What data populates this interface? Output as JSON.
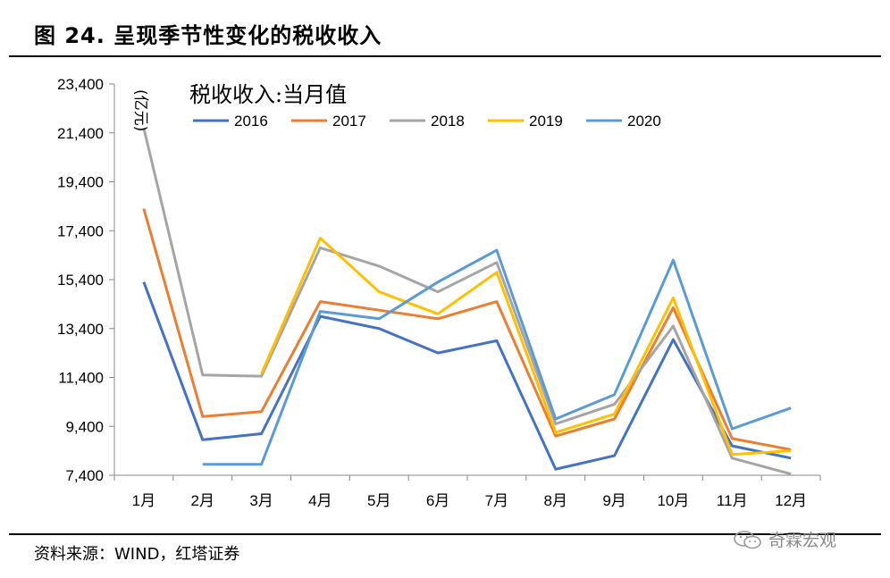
{
  "figure": {
    "title": "图 24. 呈现季节性变化的税收收入",
    "source": "资料来源：WIND，红塔证券",
    "watermark": "奇霖宏观"
  },
  "chart_data": {
    "type": "line",
    "title": "税收收入:当月值",
    "unit": "(亿元)",
    "categories": [
      "1月",
      "2月",
      "3月",
      "4月",
      "5月",
      "6月",
      "7月",
      "8月",
      "9月",
      "10月",
      "11月",
      "12月"
    ],
    "ylim": [
      7400,
      23400
    ],
    "yticks": [
      7400,
      9400,
      11400,
      13400,
      15400,
      17400,
      19400,
      21400,
      23400
    ],
    "ytick_labels": [
      "7,400",
      "9,400",
      "11,400",
      "13,400",
      "15,400",
      "17,400",
      "19,400",
      "21,400",
      "23,400"
    ],
    "grid": false,
    "legend_position": "top",
    "series": [
      {
        "name": "2016",
        "color": "#4472C4",
        "values": [
          15300,
          8850,
          9100,
          13900,
          13400,
          12400,
          12900,
          7650,
          8200,
          12950,
          8600,
          8100
        ]
      },
      {
        "name": "2017",
        "color": "#ED7D31",
        "values": [
          18300,
          9800,
          10000,
          14500,
          14150,
          13800,
          14500,
          9000,
          9700,
          14250,
          8900,
          8450
        ]
      },
      {
        "name": "2018",
        "color": "#A5A5A5",
        "values": [
          21600,
          11500,
          11450,
          16700,
          15950,
          14900,
          16100,
          9500,
          10300,
          13500,
          8100,
          7450
        ]
      },
      {
        "name": "2019",
        "color": "#FFC000",
        "values": [
          null,
          null,
          11550,
          17100,
          14900,
          14000,
          15700,
          9150,
          9900,
          14650,
          8250,
          8400
        ]
      },
      {
        "name": "2020",
        "color": "#5B9BD5",
        "values": [
          null,
          7850,
          7850,
          14100,
          13800,
          15300,
          16600,
          9700,
          10700,
          16200,
          9300,
          10150
        ]
      }
    ]
  }
}
